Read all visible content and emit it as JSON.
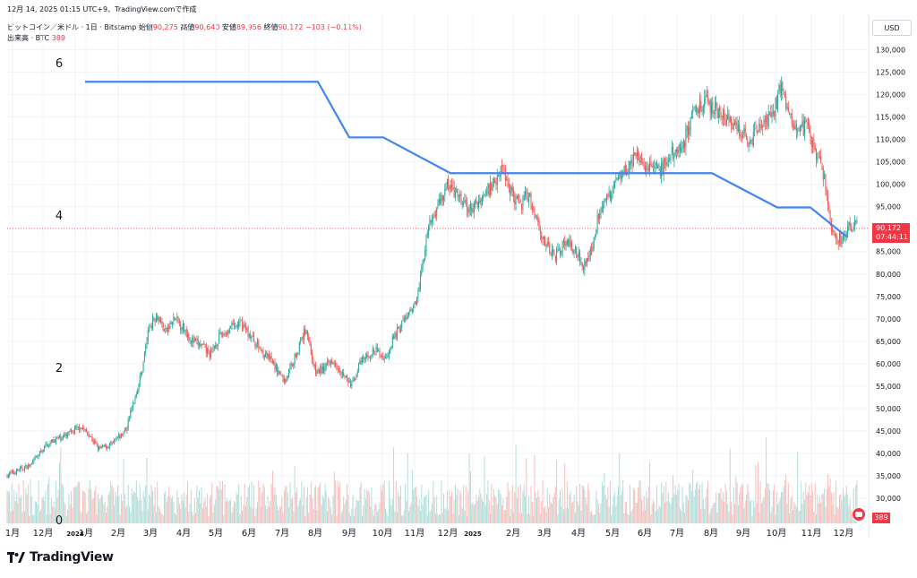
{
  "header": {
    "timestamp_line": "12月 14, 2025 01:15 UTC+9、TradingView.comで作成",
    "symbol": "ビットコイン／米ドル · 1日 · Bitstamp",
    "open_label": "始値",
    "open_value": "90,275",
    "high_label": "高値",
    "high_value": "90,640",
    "low_label": "安値",
    "low_value": "89,956",
    "close_label": "終値",
    "close_value": "90,172",
    "change": "−103 (−0.11%)",
    "volume_label": "出来高 · BTC",
    "volume_value": "389"
  },
  "currency_button": "USD",
  "price_tag": {
    "price": "90,172",
    "countdown": "07:44:11"
  },
  "volume_tag": "389",
  "brand": "TradingView",
  "colors": {
    "up": "#26a69a",
    "down": "#ef5350",
    "overlay": "#4285f4",
    "last_price": "#f23645"
  },
  "chart_data": [
    {
      "type": "candlestick",
      "description_source": "daily BTC/USD price series (approximate closes at month boundaries)",
      "x_tick_labels": [
        "1月",
        "12月",
        "2024",
        "1月",
        "2月",
        "3月",
        "4月",
        "5月",
        "6月",
        "7月",
        "8月",
        "9月",
        "10月",
        "11月",
        "12月",
        "2025",
        "2月",
        "3月",
        "4月",
        "5月",
        "6月",
        "7月",
        "8月",
        "9月",
        "10月",
        "11月",
        "12月"
      ],
      "y_axis_labels": [
        "30,000",
        "35,000",
        "40,000",
        "45,000",
        "50,000",
        "55,000",
        "60,000",
        "65,000",
        "70,000",
        "75,000",
        "80,000",
        "85,000",
        "90,000",
        "95,000",
        "100,000",
        "105,000",
        "110,000",
        "115,000",
        "120,000",
        "125,000",
        "130,000"
      ],
      "ylim": [
        25000,
        133000
      ],
      "y_axis_side": "right",
      "grid": true,
      "price_path": [
        [
          0,
          34500
        ],
        [
          18,
          36000
        ],
        [
          35,
          37500
        ],
        [
          50,
          41500
        ],
        [
          60,
          43000
        ],
        [
          75,
          44000
        ],
        [
          90,
          46000
        ],
        [
          100,
          44000
        ],
        [
          110,
          41000
        ],
        [
          125,
          42000
        ],
        [
          140,
          45000
        ],
        [
          150,
          52000
        ],
        [
          158,
          58000
        ],
        [
          166,
          68000
        ],
        [
          175,
          71000
        ],
        [
          185,
          67000
        ],
        [
          195,
          70000
        ],
        [
          205,
          68000
        ],
        [
          215,
          65000
        ],
        [
          225,
          64000
        ],
        [
          235,
          62000
        ],
        [
          245,
          66000
        ],
        [
          258,
          68000
        ],
        [
          270,
          69000
        ],
        [
          280,
          66000
        ],
        [
          292,
          63000
        ],
        [
          305,
          60000
        ],
        [
          318,
          56000
        ],
        [
          330,
          62000
        ],
        [
          342,
          68000
        ],
        [
          352,
          58000
        ],
        [
          362,
          59000
        ],
        [
          372,
          61000
        ],
        [
          382,
          58000
        ],
        [
          392,
          55000
        ],
        [
          402,
          60000
        ],
        [
          412,
          62000
        ],
        [
          420,
          63000
        ],
        [
          430,
          61000
        ],
        [
          440,
          66000
        ],
        [
          452,
          70000
        ],
        [
          462,
          72000
        ],
        [
          470,
          80000
        ],
        [
          478,
          90000
        ],
        [
          488,
          95000
        ],
        [
          500,
          100000
        ],
        [
          512,
          97000
        ],
        [
          525,
          94000
        ],
        [
          538,
          97000
        ],
        [
          550,
          100000
        ],
        [
          560,
          104000
        ],
        [
          570,
          99000
        ],
        [
          580,
          95000
        ],
        [
          590,
          98000
        ],
        [
          600,
          92000
        ],
        [
          610,
          86000
        ],
        [
          620,
          84000
        ],
        [
          630,
          87000
        ],
        [
          640,
          86000
        ],
        [
          652,
          82000
        ],
        [
          660,
          85000
        ],
        [
          670,
          95000
        ],
        [
          680,
          97000
        ],
        [
          690,
          102000
        ],
        [
          700,
          104000
        ],
        [
          712,
          106000
        ],
        [
          725,
          104000
        ],
        [
          738,
          103000
        ],
        [
          752,
          107000
        ],
        [
          765,
          110000
        ],
        [
          775,
          117000
        ],
        [
          788,
          118000
        ],
        [
          800,
          117000
        ],
        [
          812,
          114000
        ],
        [
          825,
          112000
        ],
        [
          838,
          110000
        ],
        [
          850,
          113000
        ],
        [
          862,
          115000
        ],
        [
          872,
          122000
        ],
        [
          880,
          117000
        ],
        [
          892,
          112000
        ],
        [
          902,
          113000
        ],
        [
          912,
          106000
        ],
        [
          920,
          102000
        ],
        [
          928,
          90000
        ],
        [
          935,
          88000
        ],
        [
          942,
          88000
        ],
        [
          950,
          91000
        ],
        [
          958,
          90172
        ]
      ]
    },
    {
      "type": "bar",
      "name": "出来高",
      "description_source": "daily volume bars at the bottom of the price pane (relative heights)"
    },
    {
      "type": "line",
      "description_source": "blue step-line overlay with its own left-side scale",
      "y_axis_labels": [
        "0",
        "2",
        "4",
        "6"
      ],
      "y_axis_side": "left",
      "ylim": [
        0,
        6.85
      ],
      "points": [
        [
          95,
          5.75
        ],
        [
          355,
          5.75
        ],
        [
          390,
          5.02
        ],
        [
          428,
          5.02
        ],
        [
          503,
          4.55
        ],
        [
          795,
          4.55
        ],
        [
          868,
          4.1
        ],
        [
          905,
          4.1
        ],
        [
          945,
          3.72
        ]
      ]
    }
  ]
}
